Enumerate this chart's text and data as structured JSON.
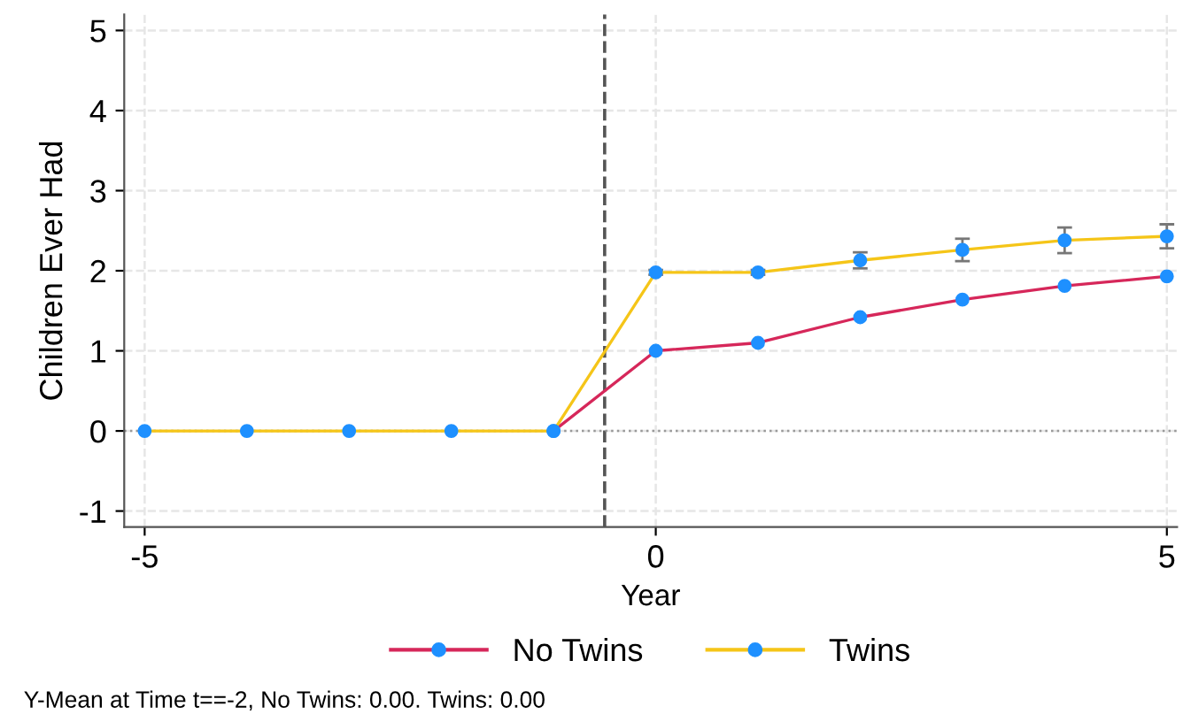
{
  "chart_data": {
    "type": "line",
    "xlabel": "Year",
    "ylabel": "Children Ever Had",
    "x": [
      -5,
      -4,
      -3,
      -2,
      -1,
      0,
      1,
      2,
      3,
      4,
      5
    ],
    "series": [
      {
        "name": "No Twins",
        "color": "#d6275a",
        "colors": [
          "#1e90ff",
          "#1e90ff",
          "#1e90ff",
          "#1e90ff",
          "#1e90ff",
          "#1e90ff",
          "#1e90ff",
          "#1e90ff",
          "#1e90ff",
          "#1e90ff",
          "#1e90ff"
        ],
        "values": [
          null,
          null,
          null,
          null,
          0,
          1.0,
          1.1,
          1.42,
          1.64,
          1.81,
          1.93
        ]
      },
      {
        "name": "Twins",
        "color": "#f5c518",
        "colors": [
          "#1e90ff",
          "#1e90ff",
          "#1e90ff",
          "#1e90ff",
          "#1e90ff",
          "#1e90ff",
          "#1e90ff",
          "#1e90ff",
          "#1e90ff",
          "#1e90ff",
          "#1e90ff"
        ],
        "values": [
          0,
          0,
          0,
          0,
          0,
          1.98,
          1.98,
          2.13,
          2.26,
          2.38,
          2.43
        ],
        "errors": [
          null,
          null,
          null,
          null,
          null,
          0.03,
          0.03,
          0.1,
          0.14,
          0.16,
          0.15
        ]
      }
    ],
    "xlim": [
      -5.2,
      5.1
    ],
    "ylim": [
      -1.2,
      5.2
    ],
    "xticks": [
      -5,
      0,
      5
    ],
    "yticks": [
      -1,
      0,
      1,
      2,
      3,
      4,
      5
    ],
    "ref_lines": [
      {
        "axis": "x",
        "value": -0.5,
        "color": "#555555",
        "line_style": "dashed"
      },
      {
        "axis": "y",
        "value": 0,
        "color": "#999999",
        "line_style": "dotted"
      }
    ],
    "grid": true,
    "legend": "bottom",
    "marker": "circle",
    "line_style": "solid",
    "annotations": [
      "Y-Mean at Time t==-2, No Twins: 0.00. Twins: 0.00"
    ]
  }
}
